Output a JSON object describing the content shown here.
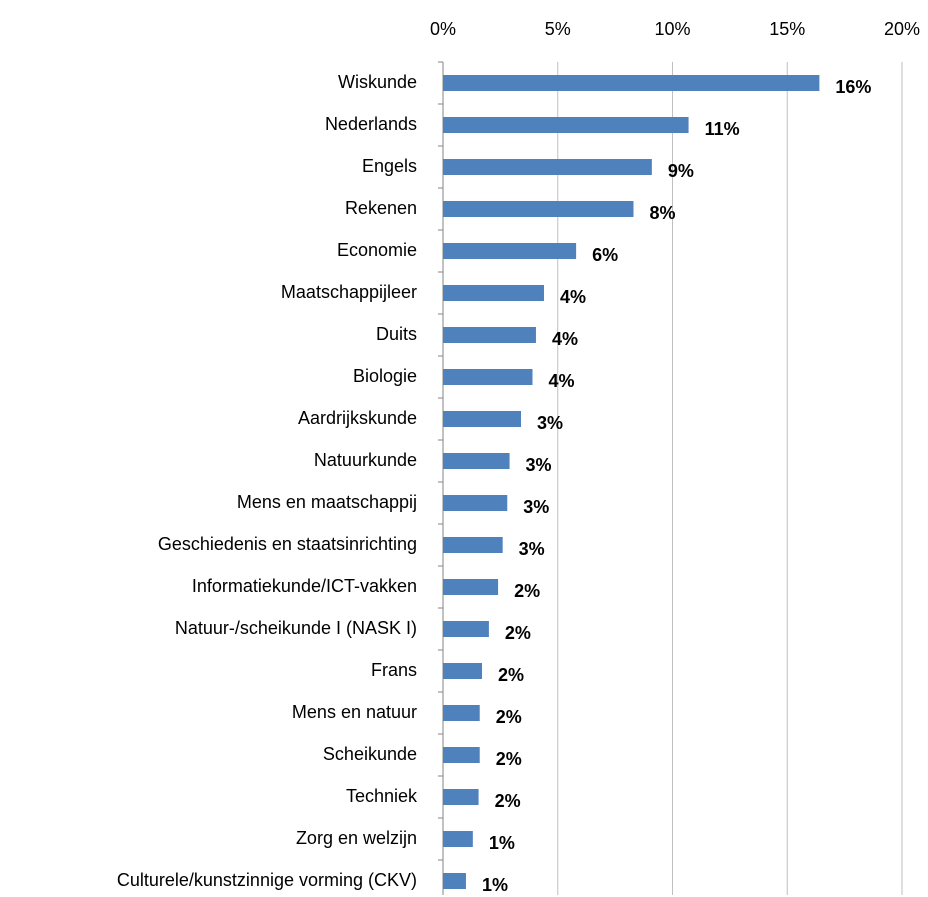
{
  "chart_data": {
    "type": "barh",
    "color": "#4f81bd",
    "grid": true,
    "categories": [
      "Wiskunde",
      "Nederlands",
      "Engels",
      "Rekenen",
      "Economie",
      "Maatschappijleer",
      "Duits",
      "Biologie",
      "Aardrijkskunde",
      "Natuurkunde",
      "Mens en maatschappij",
      "Geschiedenis en staatsinrichting",
      "Informatiekunde/ICT-vakken",
      "Natuur-/scheikunde I (NASK I)",
      "Frans",
      "Mens en natuur",
      "Scheikunde",
      "Techniek",
      "Zorg en welzijn",
      "Culturele/kunstzinnige vorming (CKV)"
    ],
    "values": [
      16.4,
      10.7,
      9.1,
      8.3,
      5.8,
      4.4,
      4.05,
      3.9,
      3.4,
      2.9,
      2.8,
      2.6,
      2.4,
      2.0,
      1.7,
      1.6,
      1.6,
      1.55,
      1.3,
      1.0
    ],
    "value_labels": [
      "16%",
      "11%",
      "9%",
      "8%",
      "6%",
      "4%",
      "4%",
      "4%",
      "3%",
      "3%",
      "3%",
      "3%",
      "2%",
      "2%",
      "2%",
      "2%",
      "2%",
      "2%",
      "1%",
      "1%"
    ],
    "xlim": [
      0,
      20
    ],
    "xticks": [
      {
        "value": 0,
        "label": "0%"
      },
      {
        "value": 5,
        "label": "5%"
      },
      {
        "value": 10,
        "label": "10%"
      },
      {
        "value": 15,
        "label": "15%"
      },
      {
        "value": 20,
        "label": "20%"
      }
    ]
  }
}
